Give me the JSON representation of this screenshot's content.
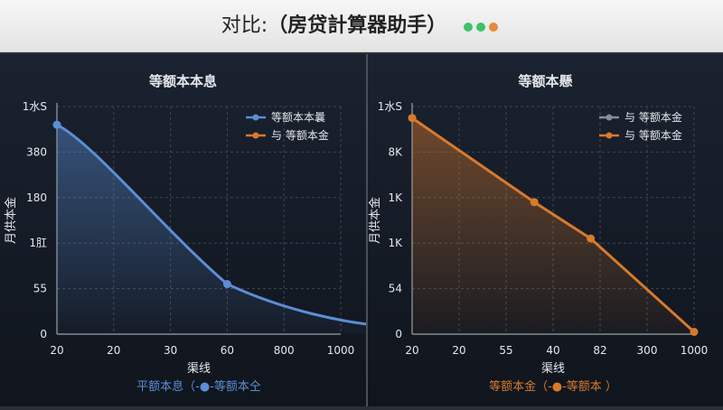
{
  "app": {
    "title_prefix": "对比:",
    "title_main": "（房贷計算器助手）",
    "window_dots": [
      "#3cc36a",
      "#3cc36a",
      "#e88a3a"
    ]
  },
  "chart_data": [
    {
      "type": "line",
      "title": "等额本本息",
      "ylabel": "月供本金",
      "xlabel": "渠线",
      "color": "#5b8ed6",
      "x_ticks": [
        "20",
        "20",
        "30",
        "60",
        "800",
        "1000"
      ],
      "y_ticks": [
        "0",
        "55",
        "1肛",
        "180",
        "380",
        "1水S"
      ],
      "grid": true,
      "legend_position": "top-right",
      "legend": [
        {
          "label": "等额本本曩",
          "color": "#5b8ed6"
        },
        {
          "label": "与 等额本金",
          "color": "#d97a2b"
        }
      ],
      "caption": "平额本息（-●-等额本仝",
      "caption_color": "#5b8ed6",
      "series": [
        {
          "values": [
            [
              0,
              0.92
            ],
            [
              3,
              0.22
            ],
            [
              6,
              0.03
            ]
          ]
        }
      ]
    },
    {
      "type": "line",
      "title": "等额本懸",
      "ylabel": "月供本金",
      "xlabel": "渠线",
      "color": "#d97a2b",
      "x_ticks": [
        "20",
        "20",
        "55",
        "40",
        "82",
        "300",
        "1000"
      ],
      "y_ticks": [
        "0",
        "54",
        "1K",
        "1K",
        "8K",
        "1水S"
      ],
      "grid": true,
      "legend_position": "top-right",
      "legend": [
        {
          "label": "与 等额本金",
          "color": "#8a8d93"
        },
        {
          "label": "与 等额本金",
          "color": "#d97a2b"
        }
      ],
      "caption": "等额本金（-●-等额本 ）",
      "caption_color": "#d97a2b",
      "series": [
        {
          "values": [
            [
              0,
              0.95
            ],
            [
              2.6,
              0.58
            ],
            [
              3.8,
              0.42
            ],
            [
              6,
              0.01
            ]
          ]
        }
      ]
    }
  ]
}
